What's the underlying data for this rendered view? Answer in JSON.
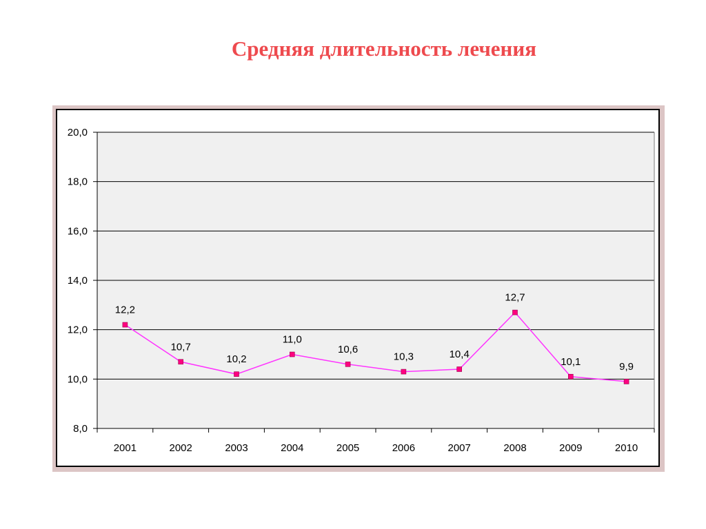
{
  "title": "Средняя длительность лечения",
  "colors": {
    "title": "#ee4a4e",
    "line": "#ff33ff",
    "marker": "#ff0080",
    "plot_bg": "#f0f0f0",
    "frame": "#dcc5c5"
  },
  "chart_data": {
    "type": "line",
    "title": "",
    "xlabel": "",
    "ylabel": "",
    "categories": [
      "2001",
      "2002",
      "2003",
      "2004",
      "2005",
      "2006",
      "2007",
      "2008",
      "2009",
      "2010"
    ],
    "series": [
      {
        "values": [
          12.2,
          10.7,
          10.2,
          11.0,
          10.6,
          10.3,
          10.4,
          12.7,
          10.1,
          9.9
        ],
        "labels": [
          "12,2",
          "10,7",
          "10,2",
          "11,0",
          "10,6",
          "10,3",
          "10,4",
          "12,7",
          "10,1",
          "9,9"
        ]
      }
    ],
    "ylim": [
      8.0,
      20.0
    ],
    "yticks": [
      8.0,
      10.0,
      12.0,
      14.0,
      16.0,
      18.0,
      20.0
    ],
    "ytick_labels": [
      "8,0",
      "10,0",
      "12,0",
      "14,0",
      "16,0",
      "18,0",
      "20,0"
    ],
    "grid": true,
    "legend": "none"
  }
}
